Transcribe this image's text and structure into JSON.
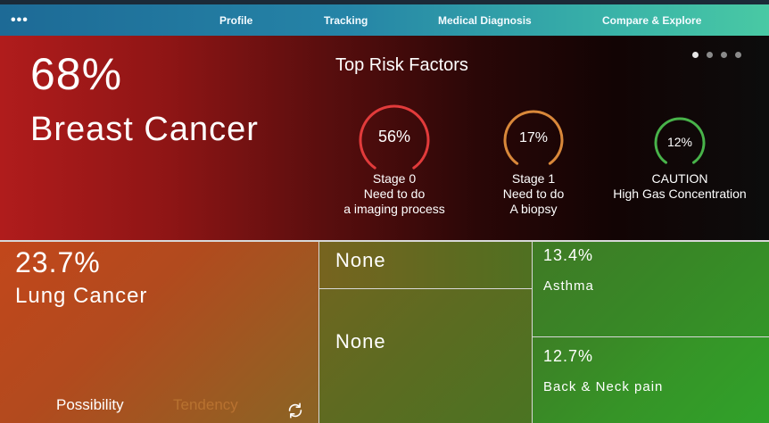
{
  "nav": {
    "menu_glyph": "•••",
    "items": [
      "Profile",
      "Tracking",
      "Medical Diagnosis",
      "Compare & Explore"
    ]
  },
  "hero": {
    "percent": "68%",
    "name": "Breast Cancer",
    "risk_title": "Top Risk Factors",
    "pager": {
      "pages": 4,
      "active": 1
    },
    "gauges": [
      {
        "value": "56%",
        "fraction": 0.56,
        "color": "#e23b3b",
        "lines": [
          "Stage 0",
          "Need to do",
          "a imaging process"
        ]
      },
      {
        "value": "17%",
        "fraction": 0.17,
        "color": "#d9883a",
        "lines": [
          "Stage 1",
          "Need to do",
          "A biopsy"
        ]
      },
      {
        "value": "12%",
        "fraction": 0.12,
        "color": "#48b34a",
        "lines": [
          "CAUTION",
          "High Gas Concentration"
        ]
      }
    ]
  },
  "tiles": {
    "lung": {
      "percent": "23.7%",
      "name": "Lung Cancer"
    },
    "none_top": "None",
    "none_bottom": "None",
    "asthma": {
      "percent": "13.4%",
      "name": "Asthma"
    },
    "neck": {
      "percent": "12.7%",
      "name": "Back & Neck pain"
    }
  },
  "tabs": {
    "possibility": "Possibility",
    "tendency": "Tendency"
  },
  "icons": {
    "refresh": "refresh-icon",
    "menu": "more-dots-icon"
  },
  "colors": {
    "tendency_inactive": "#b87230",
    "nav_start": "#1d6a96",
    "nav_end": "#49c9a4"
  }
}
